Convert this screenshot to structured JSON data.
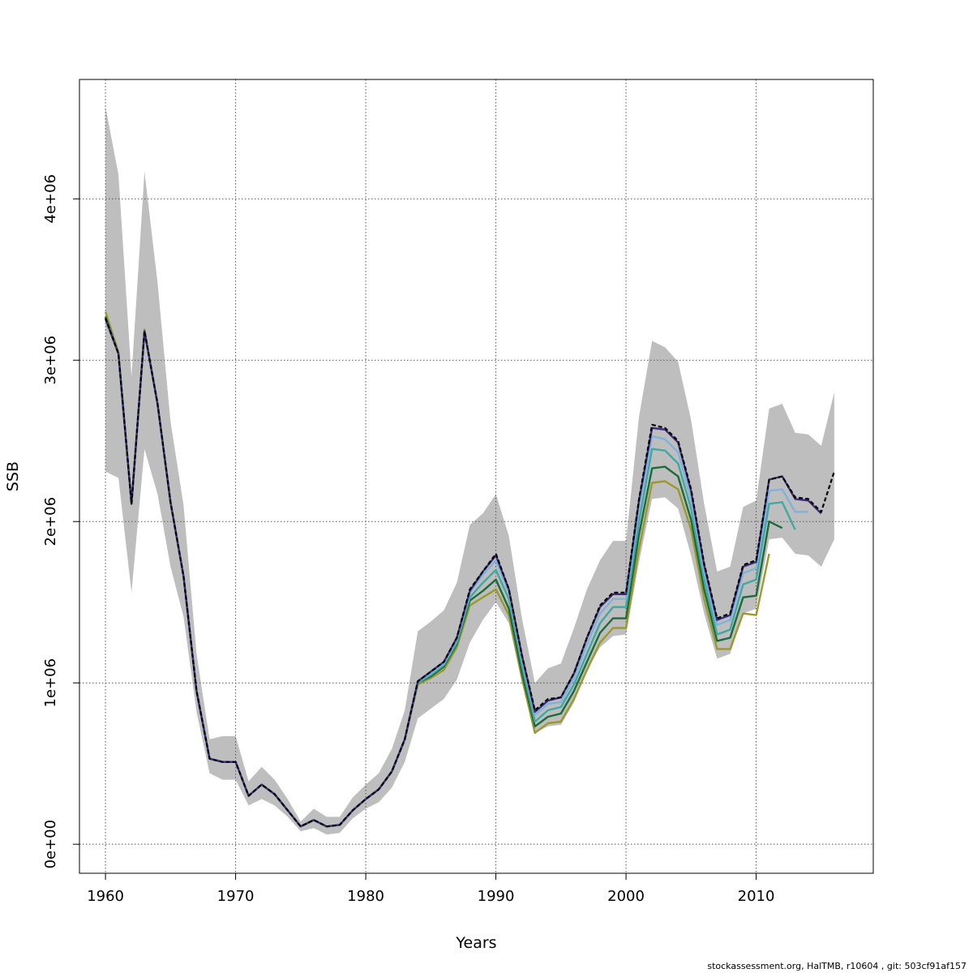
{
  "chart_data": {
    "type": "line",
    "title": "",
    "xlabel": "Years",
    "ylabel": "SSB",
    "xlim": [
      1958,
      2019
    ],
    "ylim": [
      -180000,
      4740000
    ],
    "x_ticks": [
      1960,
      1970,
      1980,
      1990,
      2000,
      2010
    ],
    "y_ticks": [
      0,
      1000000,
      2000000,
      3000000,
      4000000
    ],
    "y_tick_labels": [
      "0e+00",
      "1e+06",
      "2e+06",
      "3e+06",
      "4e+06"
    ],
    "grid": true,
    "band_color": "#bebebe",
    "confidence_band": {
      "x": [
        1960,
        1961,
        1962,
        1963,
        1964,
        1965,
        1966,
        1967,
        1968,
        1969,
        1970,
        1971,
        1972,
        1973,
        1974,
        1975,
        1976,
        1977,
        1978,
        1979,
        1980,
        1981,
        1982,
        1983,
        1984,
        1985,
        1986,
        1987,
        1988,
        1989,
        1990,
        1991,
        1992,
        1993,
        1994,
        1995,
        1996,
        1997,
        1998,
        1999,
        2000,
        2001,
        2002,
        2003,
        2004,
        2005,
        2006,
        2007,
        2008,
        2009,
        2010,
        2011,
        2012,
        2013,
        2014,
        2015,
        2016
      ],
      "upper": [
        4570000,
        4150000,
        2900000,
        4170000,
        3480000,
        2620000,
        2100000,
        1180000,
        650000,
        670000,
        670000,
        390000,
        480000,
        400000,
        280000,
        140000,
        220000,
        170000,
        170000,
        290000,
        370000,
        440000,
        590000,
        830000,
        1320000,
        1380000,
        1450000,
        1620000,
        1980000,
        2050000,
        2170000,
        1910000,
        1400000,
        1000000,
        1090000,
        1120000,
        1340000,
        1580000,
        1760000,
        1880000,
        1880000,
        2650000,
        3120000,
        3080000,
        2990000,
        2630000,
        2110000,
        1690000,
        1720000,
        2090000,
        2130000,
        2700000,
        2730000,
        2550000,
        2540000,
        2470000,
        2800000
      ],
      "lower": [
        2310000,
        2270000,
        1560000,
        2450000,
        2170000,
        1720000,
        1410000,
        820000,
        440000,
        400000,
        400000,
        240000,
        280000,
        240000,
        170000,
        80000,
        100000,
        60000,
        70000,
        160000,
        220000,
        260000,
        350000,
        510000,
        780000,
        840000,
        900000,
        1020000,
        1250000,
        1390000,
        1500000,
        1370000,
        1000000,
        690000,
        730000,
        740000,
        880000,
        1080000,
        1220000,
        1290000,
        1300000,
        1750000,
        2140000,
        2150000,
        2080000,
        1790000,
        1430000,
        1150000,
        1180000,
        1430000,
        1460000,
        1890000,
        1900000,
        1800000,
        1790000,
        1720000,
        1890000
      ]
    },
    "series": [
      {
        "color": "#000000",
        "dash": true,
        "x": [
          1960,
          1961,
          1962,
          1963,
          1964,
          1965,
          1966,
          1967,
          1968,
          1969,
          1970,
          1971,
          1972,
          1973,
          1974,
          1975,
          1976,
          1977,
          1978,
          1979,
          1980,
          1981,
          1982,
          1983,
          1984,
          1985,
          1986,
          1987,
          1988,
          1989,
          1990,
          1991,
          1992,
          1993,
          1994,
          1995,
          1996,
          1997,
          1998,
          1999,
          2000,
          2001,
          2002,
          2003,
          2004,
          2005,
          2006,
          2007,
          2008,
          2009,
          2010,
          2011,
          2012,
          2013,
          2014,
          2015,
          2016
        ],
        "y": [
          3260000,
          3040000,
          2110000,
          3180000,
          2730000,
          2120000,
          1660000,
          950000,
          530000,
          510000,
          510000,
          300000,
          370000,
          310000,
          210000,
          110000,
          150000,
          110000,
          120000,
          210000,
          280000,
          340000,
          450000,
          650000,
          1010000,
          1070000,
          1130000,
          1280000,
          1580000,
          1690000,
          1800000,
          1580000,
          1170000,
          830000,
          900000,
          910000,
          1060000,
          1280000,
          1480000,
          1560000,
          1560000,
          2140000,
          2600000,
          2580000,
          2500000,
          2200000,
          1740000,
          1400000,
          1430000,
          1730000,
          1760000,
          2260000,
          2280000,
          2150000,
          2140000,
          2060000,
          2310000
        ]
      },
      {
        "color": "#3c2c7c",
        "dash": false,
        "x": [
          1960,
          1961,
          1962,
          1963,
          1964,
          1965,
          1966,
          1967,
          1968,
          1969,
          1970,
          1971,
          1972,
          1973,
          1974,
          1975,
          1976,
          1977,
          1978,
          1979,
          1980,
          1981,
          1982,
          1983,
          1984,
          1985,
          1986,
          1987,
          1988,
          1989,
          1990,
          1991,
          1992,
          1993,
          1994,
          1995,
          1996,
          1997,
          1998,
          1999,
          2000,
          2001,
          2002,
          2003,
          2004,
          2005,
          2006,
          2007,
          2008,
          2009,
          2010,
          2011,
          2012,
          2013,
          2014,
          2015
        ],
        "y": [
          3260000,
          3040000,
          2110000,
          3180000,
          2730000,
          2120000,
          1660000,
          950000,
          530000,
          510000,
          510000,
          300000,
          370000,
          310000,
          210000,
          110000,
          150000,
          110000,
          120000,
          210000,
          280000,
          340000,
          450000,
          650000,
          1010000,
          1070000,
          1130000,
          1280000,
          1570000,
          1690000,
          1790000,
          1580000,
          1170000,
          820000,
          890000,
          910000,
          1060000,
          1280000,
          1470000,
          1550000,
          1550000,
          2130000,
          2580000,
          2570000,
          2490000,
          2190000,
          1730000,
          1390000,
          1420000,
          1720000,
          1750000,
          2260000,
          2280000,
          2140000,
          2130000,
          2050000
        ]
      },
      {
        "color": "#7fb2dd",
        "dash": false,
        "x": [
          1960,
          1961,
          1962,
          1963,
          1964,
          1965,
          1966,
          1967,
          1968,
          1969,
          1970,
          1971,
          1972,
          1973,
          1974,
          1975,
          1976,
          1977,
          1978,
          1979,
          1980,
          1981,
          1982,
          1983,
          1984,
          1985,
          1986,
          1987,
          1988,
          1989,
          1990,
          1991,
          1992,
          1993,
          1994,
          1995,
          1996,
          1997,
          1998,
          1999,
          2000,
          2001,
          2002,
          2003,
          2004,
          2005,
          2006,
          2007,
          2008,
          2009,
          2010,
          2011,
          2012,
          2013,
          2014
        ],
        "y": [
          3260000,
          3040000,
          2110000,
          3180000,
          2730000,
          2120000,
          1660000,
          950000,
          530000,
          510000,
          510000,
          300000,
          370000,
          310000,
          210000,
          110000,
          150000,
          110000,
          120000,
          210000,
          280000,
          340000,
          450000,
          650000,
          1010000,
          1060000,
          1120000,
          1270000,
          1560000,
          1670000,
          1760000,
          1560000,
          1150000,
          800000,
          870000,
          880000,
          1030000,
          1240000,
          1430000,
          1520000,
          1520000,
          2080000,
          2530000,
          2510000,
          2430000,
          2140000,
          1690000,
          1360000,
          1390000,
          1680000,
          1710000,
          2190000,
          2200000,
          2060000,
          2060000
        ]
      },
      {
        "color": "#3fa9a2",
        "dash": false,
        "x": [
          1960,
          1961,
          1962,
          1963,
          1964,
          1965,
          1966,
          1967,
          1968,
          1969,
          1970,
          1971,
          1972,
          1973,
          1974,
          1975,
          1976,
          1977,
          1978,
          1979,
          1980,
          1981,
          1982,
          1983,
          1984,
          1985,
          1986,
          1987,
          1988,
          1989,
          1990,
          1991,
          1992,
          1993,
          1994,
          1995,
          1996,
          1997,
          1998,
          1999,
          2000,
          2001,
          2002,
          2003,
          2004,
          2005,
          2006,
          2007,
          2008,
          2009,
          2010,
          2011,
          2012,
          2013
        ],
        "y": [
          3250000,
          3040000,
          2110000,
          3180000,
          2730000,
          2120000,
          1660000,
          950000,
          530000,
          510000,
          510000,
          300000,
          370000,
          310000,
          210000,
          110000,
          150000,
          110000,
          120000,
          210000,
          280000,
          340000,
          450000,
          650000,
          1000000,
          1050000,
          1110000,
          1250000,
          1530000,
          1620000,
          1700000,
          1520000,
          1110000,
          760000,
          830000,
          850000,
          990000,
          1180000,
          1370000,
          1470000,
          1470000,
          2000000,
          2450000,
          2440000,
          2360000,
          2080000,
          1640000,
          1300000,
          1330000,
          1610000,
          1640000,
          2110000,
          2120000,
          1950000
        ]
      },
      {
        "color": "#1c6b3a",
        "dash": false,
        "x": [
          1960,
          1961,
          1962,
          1963,
          1964,
          1965,
          1966,
          1967,
          1968,
          1969,
          1970,
          1971,
          1972,
          1973,
          1974,
          1975,
          1976,
          1977,
          1978,
          1979,
          1980,
          1981,
          1982,
          1983,
          1984,
          1985,
          1986,
          1987,
          1988,
          1989,
          1990,
          1991,
          1992,
          1993,
          1994,
          1995,
          1996,
          1997,
          1998,
          1999,
          2000,
          2001,
          2002,
          2003,
          2004,
          2005,
          2006,
          2007,
          2008,
          2009,
          2010,
          2011,
          2012
        ],
        "y": [
          3270000,
          3040000,
          2110000,
          3180000,
          2730000,
          2120000,
          1660000,
          950000,
          530000,
          510000,
          510000,
          300000,
          370000,
          310000,
          210000,
          110000,
          150000,
          110000,
          120000,
          210000,
          280000,
          340000,
          450000,
          650000,
          1000000,
          1040000,
          1100000,
          1240000,
          1510000,
          1570000,
          1640000,
          1460000,
          1060000,
          730000,
          790000,
          810000,
          950000,
          1130000,
          1310000,
          1400000,
          1400000,
          1920000,
          2330000,
          2340000,
          2280000,
          2010000,
          1580000,
          1260000,
          1280000,
          1530000,
          1540000,
          2000000,
          1960000
        ]
      },
      {
        "color": "#9a9a2c",
        "dash": false,
        "x": [
          1960,
          1961,
          1962,
          1963,
          1964,
          1965,
          1966,
          1967,
          1968,
          1969,
          1970,
          1971,
          1972,
          1973,
          1974,
          1975,
          1976,
          1977,
          1978,
          1979,
          1980,
          1981,
          1982,
          1983,
          1984,
          1985,
          1986,
          1987,
          1988,
          1989,
          1990,
          1991,
          1992,
          1993,
          1994,
          1995,
          1996,
          1997,
          1998,
          1999,
          2000,
          2001,
          2002,
          2003,
          2004,
          2005,
          2006,
          2007,
          2008,
          2009,
          2010,
          2011
        ],
        "y": [
          3300000,
          3050000,
          2110000,
          3190000,
          2730000,
          2120000,
          1660000,
          950000,
          530000,
          510000,
          510000,
          300000,
          370000,
          310000,
          210000,
          110000,
          150000,
          110000,
          120000,
          210000,
          280000,
          340000,
          450000,
          650000,
          990000,
          1030000,
          1080000,
          1220000,
          1480000,
          1530000,
          1580000,
          1420000,
          1030000,
          690000,
          750000,
          760000,
          900000,
          1080000,
          1250000,
          1340000,
          1340000,
          1830000,
          2240000,
          2250000,
          2200000,
          1950000,
          1520000,
          1210000,
          1210000,
          1430000,
          1420000,
          1800000
        ]
      }
    ]
  },
  "footer": "stockassessment.org, HalTMB, r10604 , git: 503cf91af157"
}
